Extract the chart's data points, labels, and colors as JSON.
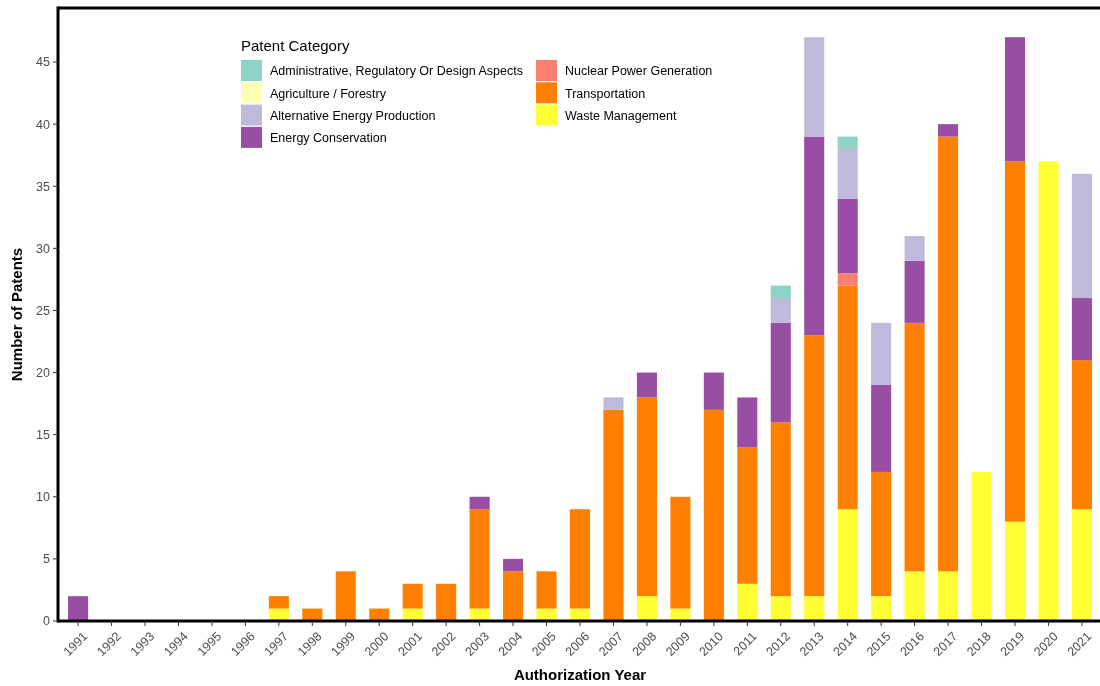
{
  "chart_data": {
    "type": "bar",
    "stacked": true,
    "xlabel": "Authorization Year",
    "ylabel": "Number of Patents",
    "legend_title": "Patent Category",
    "legend": "top",
    "grid": false,
    "categories": [
      "1991",
      "1992",
      "1993",
      "1994",
      "1995",
      "1996",
      "1997",
      "1998",
      "1999",
      "2000",
      "2001",
      "2002",
      "2003",
      "2004",
      "2005",
      "2006",
      "2007",
      "2008",
      "2009",
      "2010",
      "2011",
      "2012",
      "2013",
      "2014",
      "2015",
      "2016",
      "2017",
      "2018",
      "2019",
      "2020",
      "2021"
    ],
    "ylim": [
      0,
      49.35
    ],
    "yticks": [
      0,
      5,
      10,
      15,
      20,
      25,
      30,
      35,
      40,
      45
    ],
    "series": [
      {
        "name": "Waste Management",
        "color": "#ffff33",
        "values": [
          0,
          0,
          0,
          0,
          0,
          0,
          1,
          0,
          0,
          0,
          1,
          0,
          1,
          0,
          1,
          1,
          0,
          2,
          1,
          0,
          3,
          2,
          2,
          9,
          2,
          4,
          4,
          12,
          8,
          37,
          9
        ]
      },
      {
        "name": "Transportation",
        "color": "#ff7f00",
        "values": [
          0,
          0,
          0,
          0,
          0,
          0,
          1,
          1,
          4,
          1,
          2,
          3,
          8,
          4,
          3,
          8,
          17,
          16,
          9,
          17,
          11,
          14,
          21,
          18,
          10,
          20,
          35,
          0,
          29,
          0,
          12
        ]
      },
      {
        "name": "Nuclear Power Generation",
        "color": "#fb8072",
        "values": [
          0,
          0,
          0,
          0,
          0,
          0,
          0,
          0,
          0,
          0,
          0,
          0,
          0,
          0,
          0,
          0,
          0,
          0,
          0,
          0,
          0,
          0,
          0,
          1,
          0,
          0,
          0,
          0,
          0,
          0,
          0
        ]
      },
      {
        "name": "Energy Conservation",
        "color": "#984ea3",
        "values": [
          2,
          0,
          0,
          0,
          0,
          0,
          0,
          0,
          0,
          0,
          0,
          0,
          1,
          1,
          0,
          0,
          0,
          2,
          0,
          3,
          4,
          8,
          16,
          6,
          7,
          5,
          1,
          0,
          10,
          0,
          5
        ]
      },
      {
        "name": "Alternative Energy Production",
        "color": "#bebada",
        "values": [
          0,
          0,
          0,
          0,
          0,
          0,
          0,
          0,
          0,
          0,
          0,
          0,
          0,
          0,
          0,
          0,
          1,
          0,
          0,
          0,
          0,
          2,
          8,
          4,
          5,
          2,
          0,
          0,
          0,
          0,
          10
        ]
      },
      {
        "name": "Agriculture / Forestry",
        "color": "#ffffb3",
        "values": [
          0,
          0,
          0,
          0,
          0,
          0,
          0,
          0,
          0,
          0,
          0,
          0,
          0,
          0,
          0,
          0,
          0,
          0,
          0,
          0,
          0,
          0,
          0,
          0,
          0,
          0,
          0,
          0,
          0,
          0,
          0
        ]
      },
      {
        "name": "Administrative, Regulatory Or Design Aspects",
        "color": "#8dd3c7",
        "values": [
          0,
          0,
          0,
          0,
          0,
          0,
          0,
          0,
          0,
          0,
          0,
          0,
          0,
          0,
          0,
          0,
          0,
          0,
          0,
          0,
          0,
          1,
          0,
          1,
          0,
          0,
          0,
          0,
          0,
          0,
          0
        ]
      }
    ]
  }
}
